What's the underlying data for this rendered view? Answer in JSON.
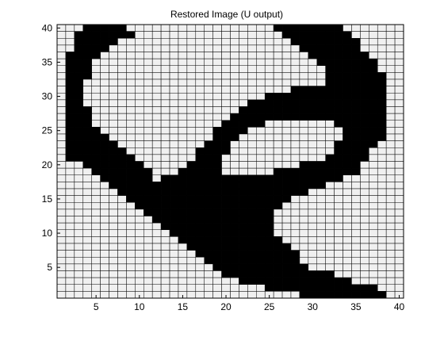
{
  "chart_data": {
    "type": "heatmap",
    "title": "Restored Image (U output)",
    "xlabel": "",
    "ylabel": "",
    "xlim": [
      1,
      40
    ],
    "ylim": [
      1,
      40
    ],
    "x_ticks": [
      "5",
      "10",
      "15",
      "20",
      "25",
      "30",
      "35",
      "40"
    ],
    "y_ticks": [
      "5",
      "10",
      "15",
      "20",
      "25",
      "30",
      "35",
      "40"
    ],
    "grid": "on",
    "colormap": "gray",
    "colors": {
      "dark": "#000000",
      "light": "#f0f0f0",
      "grid": "#000000"
    },
    "note_rows": "row 0 = y 40 (top), row 39 = y 1 (bottom); 1 = light cell, 0 = dark cell",
    "rows": [
      "1110000011111111111111111000000001111111",
      "1100000001111111111111111100000000111111",
      "1100000111111111111111111110000000011111",
      "1100001111111111111111111111000000011111",
      "1000011111111111111111111111100000001111",
      "1000111111111111111111111111110000000111",
      "1000111111111111111111111111111000000111",
      "1000111111111111111111111111111000000011",
      "1001111111111111111111111111111000000011",
      "1001111111111111111111111110000000000011",
      "1001111111111111111111110000000000000011",
      "1001111111111111111111000000000000000011",
      "1000111111111111111110000000000000000011",
      "1000111111111111111100000000000000000011",
      "1000111111111111111000001111111100000011",
      "1000011111111111110000111111111110000011",
      "1000001111111111110001111111111110000011",
      "1000000111111111100011111111111100000111",
      "1000000011111111000011111111111100001111",
      "1000000001111111000111111111111000001111",
      "1110000000111110000111111111000000011111",
      "1111000000011100000111111000000000011111",
      "1111100000010000000000000000000001111111",
      "1111110000000000000000000000000111111111",
      "1111111000000000000000000000011111111111",
      "1111111100000000000000000001111111111111",
      "1111111110000000000000000011111111111111",
      "1111111111000000000000000111111111111111",
      "1111111111100000000000000111111111111111",
      "1111111111110000000000000111111111111111",
      "1111111111111000000000000111111111111111",
      "1111111111111100000000000011111111111111",
      "1111111111111110000000000001111111111111",
      "1111111111111111000000000000111111111111",
      "1111111111111111100000000000111111111111",
      "1111111111111111110000000000011111111111",
      "1111111111111111111000000000000011111111",
      "1111111111111111111110000000000000111111",
      "1111111111111111111111110000000000000111",
      "1111111111111111111111111111000000000011"
    ]
  }
}
